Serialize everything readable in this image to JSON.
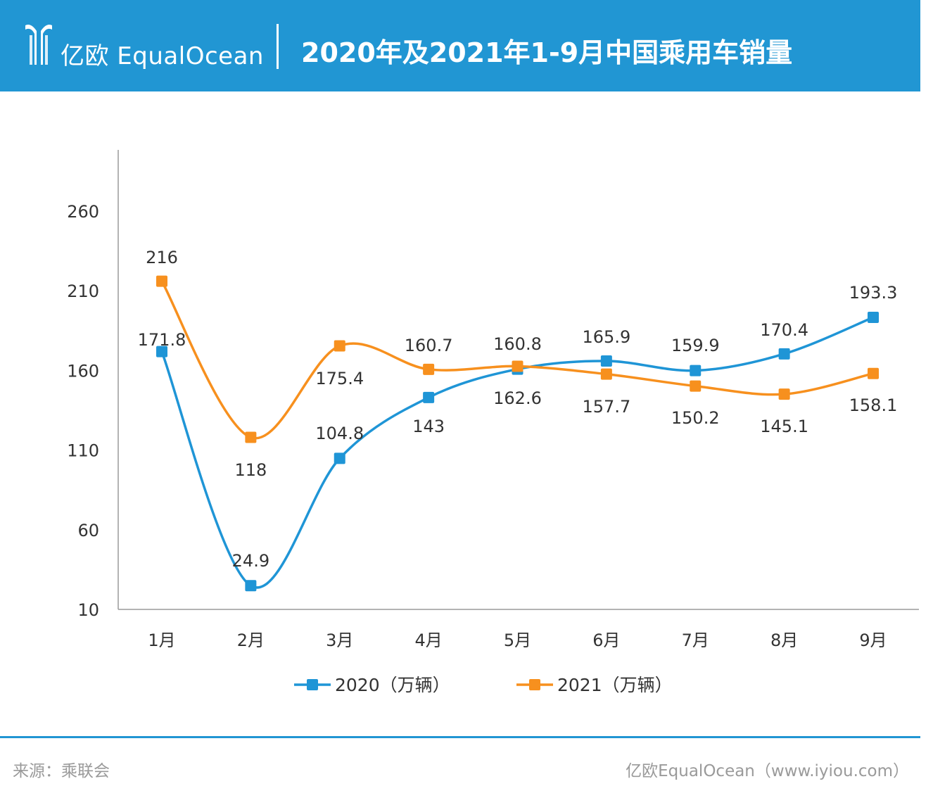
{
  "header": {
    "brand": "亿欧 EqualOcean",
    "title": "2020年及2021年1-9月中国乘用车销量"
  },
  "footer": {
    "source": "来源：乘联会",
    "credit": "亿欧EqualOcean（www.iyiou.com）"
  },
  "colors": {
    "header_bg": "#2196d3",
    "series_2020": "#1f95d6",
    "series_2021": "#f7901e"
  },
  "chart_data": {
    "type": "line",
    "categories": [
      "1月",
      "2月",
      "3月",
      "4月",
      "5月",
      "6月",
      "7月",
      "8月",
      "9月"
    ],
    "series": [
      {
        "name": "2020（万辆）",
        "values": [
          171.8,
          24.9,
          104.8,
          143,
          160.8,
          165.9,
          159.9,
          170.4,
          193.3
        ],
        "labels": [
          "171.8",
          "24.9",
          "104.8",
          "143",
          "160.8",
          "165.9",
          "159.9",
          "170.4",
          "193.3"
        ],
        "color": "#1f95d6",
        "marker": "square"
      },
      {
        "name": "2021（万辆）",
        "values": [
          216,
          118,
          175.4,
          160.7,
          162.6,
          157.7,
          150.2,
          145.1,
          158.1
        ],
        "labels": [
          "216",
          "118",
          "175.4",
          "160.7",
          "162.6",
          "157.7",
          "150.2",
          "145.1",
          "158.1"
        ],
        "color": "#f7901e",
        "marker": "square"
      }
    ],
    "yticks": [
      10,
      60,
      110,
      160,
      210,
      260
    ],
    "ylim": [
      10,
      290
    ],
    "grid": false,
    "legend": "bottom",
    "smooth": true
  }
}
